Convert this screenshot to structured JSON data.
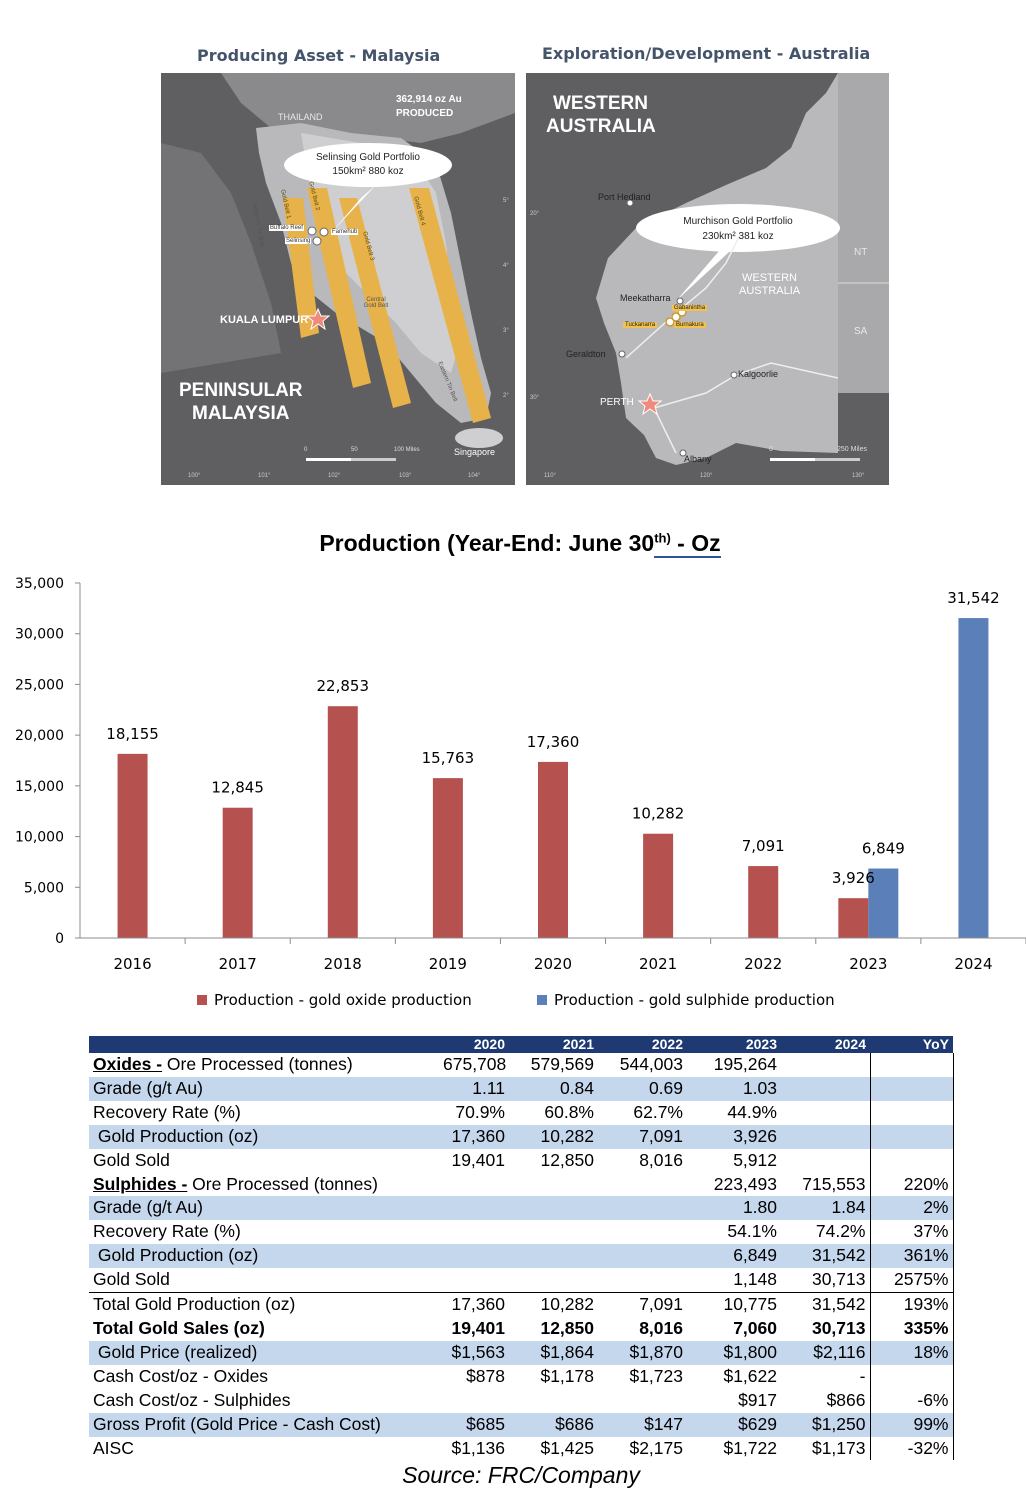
{
  "maps": {
    "left": {
      "title": "Producing Asset - Malaysia",
      "country_label": "THAILAND",
      "produced_value": "362,914 oz Au",
      "produced_label": "PRODUCED",
      "callout_line1": "Selinsing Gold Portfolio",
      "callout_line2": "150km² 880 koz",
      "belts": [
        "Gold Belt 1",
        "Gold Belt 2",
        "Gold Belt 3",
        "Gold Belt 4"
      ],
      "sites": [
        "Buffalo Reef",
        "Famehub",
        "Selinsing"
      ],
      "other_labels": [
        "Western Tin Belt",
        "Central Gold Belt",
        "Eastern Tin Belt"
      ],
      "city": "KUALA LUMPUR",
      "region_line1": "PENINSULAR",
      "region_line2": "MALAYSIA",
      "singapore": "Singapore",
      "scale": [
        "0",
        "50",
        "100 Miles"
      ],
      "lon_ticks": [
        "100°",
        "101°",
        "102°",
        "103°",
        "104°"
      ],
      "lat_ticks": [
        "5°",
        "4°",
        "3°",
        "2°"
      ]
    },
    "right": {
      "title": "Exploration/Development - Australia",
      "region_line1": "WESTERN",
      "region_line2": "AUSTRALIA",
      "callout_line1": "Murchison Gold Portfolio",
      "callout_line2": "230km² 381 koz",
      "state_line1": "WESTERN",
      "state_line2": "AUSTRALIA",
      "cities": [
        "Port Hedland",
        "Meekatharra",
        "Geraldton",
        "Kalgoorlie",
        "PERTH",
        "Albany"
      ],
      "sites": [
        "Gabanintha",
        "Tuckanarra",
        "Burnakura"
      ],
      "states": [
        "NT",
        "SA"
      ],
      "scale": [
        "0",
        "250 Miles"
      ],
      "lon_ticks": [
        "110°",
        "120°",
        "130°"
      ],
      "lat_ticks": [
        "20°",
        "30°"
      ]
    }
  },
  "chart_title_main": "Production (Year-End: June 30",
  "chart_title_sup": "th)",
  "chart_title_end": " - Oz",
  "chart_data": {
    "type": "bar",
    "categories": [
      "2016",
      "2017",
      "2018",
      "2019",
      "2020",
      "2021",
      "2022",
      "2023",
      "2024"
    ],
    "series": [
      {
        "name": "Production - gold oxide production",
        "color": "#b55250",
        "values": [
          18155,
          12845,
          22853,
          15763,
          17360,
          10282,
          7091,
          3926,
          null
        ]
      },
      {
        "name": "Production - gold sulphide production",
        "color": "#5b80b9",
        "values": [
          null,
          null,
          null,
          null,
          null,
          null,
          null,
          6849,
          31542
        ]
      }
    ],
    "value_labels": [
      [
        "18,155",
        "12,845",
        "22,853",
        "15,763",
        "17,360",
        "10,282",
        "7,091",
        "3,926",
        ""
      ],
      [
        "",
        "",
        "",
        "",
        "",
        "",
        "",
        "6,849",
        "31,542"
      ]
    ],
    "ylim": [
      0,
      35000
    ],
    "yticks": [
      0,
      5000,
      10000,
      15000,
      20000,
      25000,
      30000,
      35000
    ],
    "ytick_labels": [
      "0",
      "5,000",
      "10,000",
      "15,000",
      "20,000",
      "25,000",
      "30,000",
      "35,000"
    ],
    "legend_position": "bottom",
    "grid": false
  },
  "table": {
    "headers": [
      "",
      "2020",
      "2021",
      "2022",
      "2023",
      "2024",
      "YoY"
    ],
    "rows": [
      {
        "section": "Oxides -",
        "label": " Ore Processed (tonnes)",
        "v": [
          "675,708",
          "579,569",
          "544,003",
          "195,264",
          "",
          ""
        ]
      },
      {
        "label": "Grade (g/t Au)",
        "v": [
          "1.11",
          "0.84",
          "0.69",
          "1.03",
          "",
          ""
        ]
      },
      {
        "label": "Recovery Rate (%)",
        "v": [
          "70.9%",
          "60.8%",
          "62.7%",
          "44.9%",
          "",
          ""
        ]
      },
      {
        "label": " Gold Production (oz)",
        "v": [
          "17,360",
          "10,282",
          "7,091",
          "3,926",
          "",
          ""
        ]
      },
      {
        "label": "Gold Sold",
        "v": [
          "19,401",
          "12,850",
          "8,016",
          "5,912",
          "",
          ""
        ]
      },
      {
        "section": "Sulphides -",
        "label": " Ore Processed (tonnes)",
        "v": [
          "",
          "",
          "",
          "223,493",
          "715,553",
          "220%"
        ]
      },
      {
        "label": "Grade (g/t Au)",
        "v": [
          "",
          "",
          "",
          "1.80",
          "1.84",
          "2%"
        ]
      },
      {
        "label": "Recovery Rate (%)",
        "v": [
          "",
          "",
          "",
          "54.1%",
          "74.2%",
          "37%"
        ]
      },
      {
        "label": " Gold Production (oz)",
        "v": [
          "",
          "",
          "",
          "6,849",
          "31,542",
          "361%"
        ]
      },
      {
        "label": "Gold Sold",
        "v": [
          "",
          "",
          "",
          "1,148",
          "30,713",
          "2575%"
        ]
      },
      {
        "label": "Total Gold Production (oz)",
        "v": [
          "17,360",
          "10,282",
          "7,091",
          "10,775",
          "31,542",
          "193%"
        ]
      },
      {
        "label": "Total Gold Sales (oz)",
        "v": [
          "19,401",
          "12,850",
          "8,016",
          "7,060",
          "30,713",
          "335%"
        ]
      },
      {
        "label": " Gold Price (realized)",
        "v": [
          "$1,563",
          "$1,864",
          "$1,870",
          "$1,800",
          "$2,116",
          "18%"
        ]
      },
      {
        "label": "Cash Cost/oz - Oxides",
        "v": [
          "$878",
          "$1,178",
          "$1,723",
          "$1,622",
          "-",
          ""
        ]
      },
      {
        "label": "Cash Cost/oz - Sulphides",
        "v": [
          "",
          "",
          "",
          "$917",
          "$866",
          "-6%"
        ]
      },
      {
        "label": "Gross Profit (Gold Price - Cash Cost)",
        "v": [
          "$685",
          "$686",
          "$147",
          "$629",
          "$1,250",
          "99%"
        ]
      },
      {
        "label": "AISC",
        "v": [
          "$1,136",
          "$1,425",
          "$2,175",
          "$1,722",
          "$1,173",
          "-32%"
        ]
      }
    ]
  },
  "source": "Source: FRC/Company"
}
